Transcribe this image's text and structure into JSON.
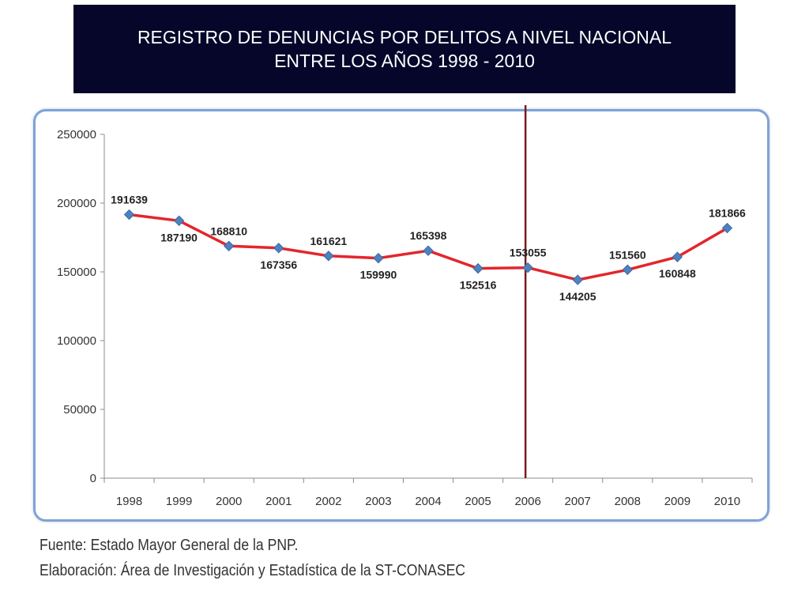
{
  "title": {
    "line1": "REGISTRO DE DENUNCIAS POR DELITOS A NIVEL NACIONAL",
    "line2": "ENTRE LOS AÑOS 1998 - 2010"
  },
  "colors": {
    "banner": "#05062a",
    "series_line": "#e3262c",
    "marker": "#4f81bd",
    "marker_line": "#7b1c1c",
    "frame": "#7fa3d6"
  },
  "chart_data": {
    "type": "line",
    "categories": [
      "1998",
      "1999",
      "2000",
      "2001",
      "2002",
      "2003",
      "2004",
      "2005",
      "2006",
      "2007",
      "2008",
      "2009",
      "2010"
    ],
    "series": [
      {
        "values": [
          191639,
          187190,
          168810,
          167356,
          161621,
          159990,
          165398,
          152516,
          153055,
          144205,
          151560,
          160848,
          181866
        ],
        "labels": [
          "191639",
          "187190",
          "168810",
          "167356",
          "161621",
          "159990",
          "165398",
          "152516",
          "153055",
          "144205",
          "151560",
          "160848",
          "181866"
        ]
      }
    ],
    "y_ticks": [
      "0",
      "50000",
      "100000",
      "150000",
      "200000",
      "250000"
    ],
    "ylim": [
      0,
      250000
    ],
    "grid": false,
    "legend": "none",
    "marker_line_category": "2006"
  },
  "notes": {
    "source": "Fuente: Estado Mayor General de la PNP.",
    "elaboration": "Elaboración: Área de Investigación y Estadística de la ST-CONASEC"
  }
}
